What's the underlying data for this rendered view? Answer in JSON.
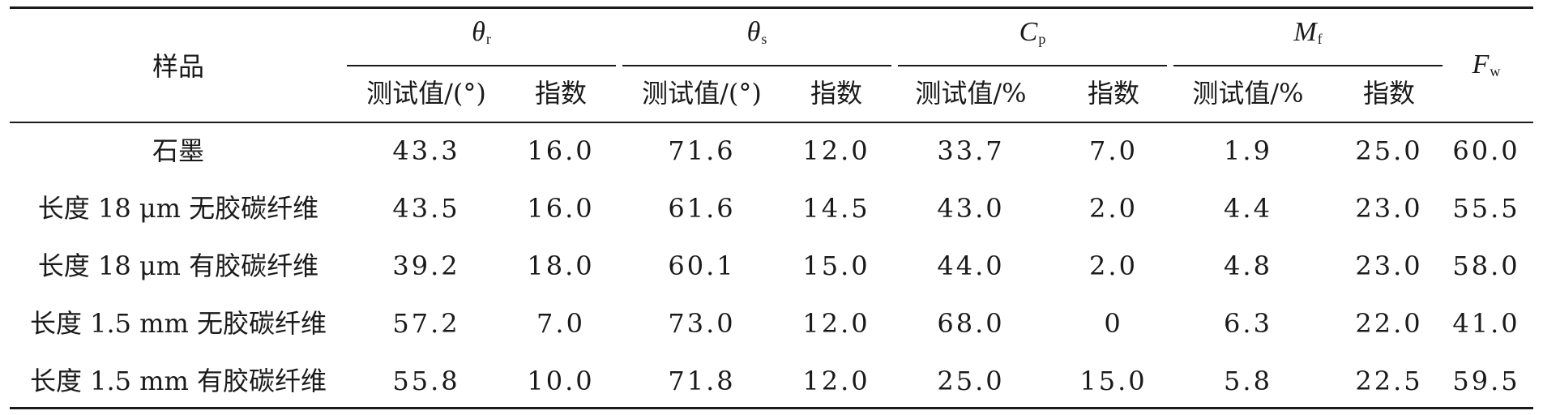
{
  "table": {
    "header": {
      "sample": "样品",
      "groups": [
        {
          "symbol": "θ",
          "sub": "r",
          "sub_headers": [
            "测试值/(°)",
            "指数"
          ]
        },
        {
          "symbol": "θ",
          "sub": "s",
          "sub_headers": [
            "测试值/(°)",
            "指数"
          ]
        },
        {
          "symbol": "C",
          "sub": "p",
          "sub_headers": [
            "测试值/%",
            "指数"
          ]
        },
        {
          "symbol": "M",
          "sub": "f",
          "sub_headers": [
            "测试值/%",
            "指数"
          ]
        }
      ],
      "fw": {
        "symbol": "F",
        "sub": "w"
      }
    },
    "rows": [
      {
        "sample": "石墨",
        "values": [
          "43.3",
          "16.0",
          "71.6",
          "12.0",
          "33.7",
          "7.0",
          "1.9",
          "25.0",
          "60.0"
        ]
      },
      {
        "sample": "长度 18 μm 无胶碳纤维",
        "values": [
          "43.5",
          "16.0",
          "61.6",
          "14.5",
          "43.0",
          "2.0",
          "4.4",
          "23.0",
          "55.5"
        ]
      },
      {
        "sample": "长度 18 μm 有胶碳纤维",
        "values": [
          "39.2",
          "18.0",
          "60.1",
          "15.0",
          "44.0",
          "2.0",
          "4.8",
          "23.0",
          "58.0"
        ]
      },
      {
        "sample": "长度 1.5 mm 无胶碳纤维",
        "values": [
          "57.2",
          "7.0",
          "73.0",
          "12.0",
          "68.0",
          "0",
          "6.3",
          "22.0",
          "41.0"
        ]
      },
      {
        "sample": "长度 1.5 mm 有胶碳纤维",
        "values": [
          "55.8",
          "10.0",
          "71.8",
          "12.0",
          "25.0",
          "15.0",
          "5.8",
          "22.5",
          "59.5"
        ]
      }
    ]
  }
}
